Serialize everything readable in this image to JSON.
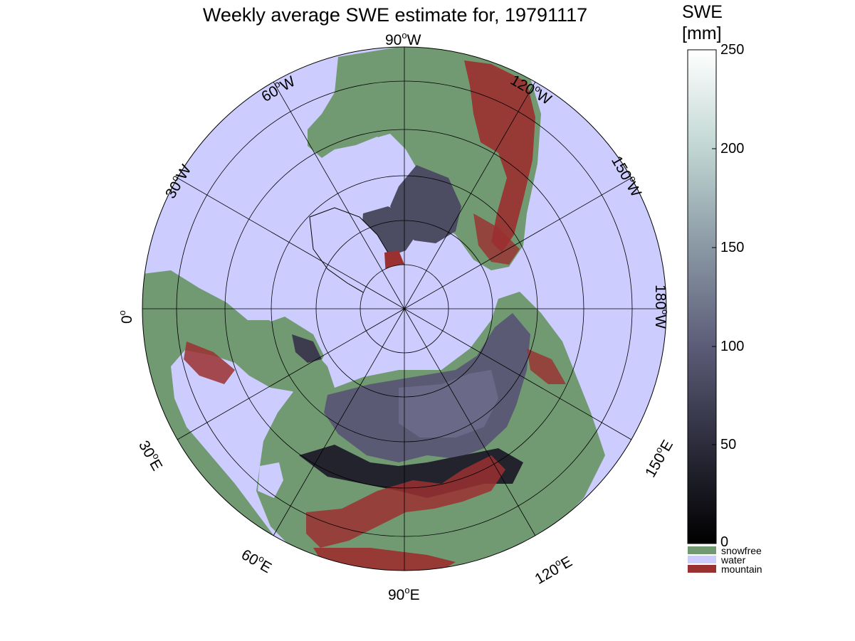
{
  "title": "Weekly average SWE estimate for, 19791117",
  "colorbar": {
    "title_line1": "SWE",
    "title_line2": "[mm]",
    "ticks": [
      "250",
      "200",
      "150",
      "100",
      "50",
      "0"
    ],
    "range": [
      0,
      250
    ],
    "gradient_colors": [
      "#000000",
      "#2c2c3c",
      "#5c5c78",
      "#8a98a4",
      "#c0d6d2",
      "#ffffff"
    ],
    "categories": [
      {
        "label": "snowfree",
        "color": "#729a72"
      },
      {
        "label": "water",
        "color": "#ccccff"
      },
      {
        "label": "mountain",
        "color": "#9b3030"
      }
    ]
  },
  "map": {
    "projection": "north polar stereographic",
    "colors": {
      "water": "#ccccff",
      "snowfree": "#729a72",
      "mountain": "#9b3030",
      "snow_deep": "#5a5a74",
      "snow_shallow": "#1a1a22"
    },
    "longitude_labels": {
      "lon_90w": "90",
      "lon_90w_suffix": "W",
      "lon_120w": "120",
      "lon_120w_suffix": "W",
      "lon_150w": "150",
      "lon_150w_suffix": "W",
      "lon_180w": "180",
      "lon_180w_suffix": "W",
      "lon_150e": "150",
      "lon_150e_suffix": "E",
      "lon_120e": "120",
      "lon_120e_suffix": "E",
      "lon_90e": "90",
      "lon_90e_suffix": "E",
      "lon_60e": "60",
      "lon_60e_suffix": "E",
      "lon_30e": "30",
      "lon_30e_suffix": "E",
      "lon_0": "0",
      "lon_30w": "30",
      "lon_30w_suffix": "W",
      "lon_60w": "60",
      "lon_60w_suffix": "W"
    }
  }
}
